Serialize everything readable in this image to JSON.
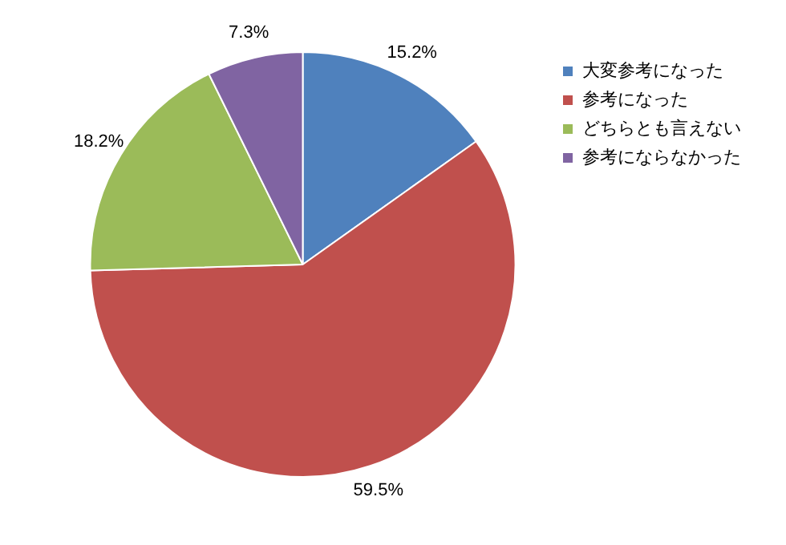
{
  "chart_data": {
    "type": "pie",
    "categories": [
      "大変参考になった",
      "参考になった",
      "どちらとも言えない",
      "参考にならなかった"
    ],
    "values": [
      15.2,
      59.5,
      18.2,
      7.3
    ],
    "value_labels": [
      "15.2%",
      "59.5%",
      "18.2%",
      "7.3%"
    ],
    "colors": [
      "#4f81bd",
      "#c0504d",
      "#9bbb59",
      "#8064a2"
    ],
    "legend": "top right"
  }
}
